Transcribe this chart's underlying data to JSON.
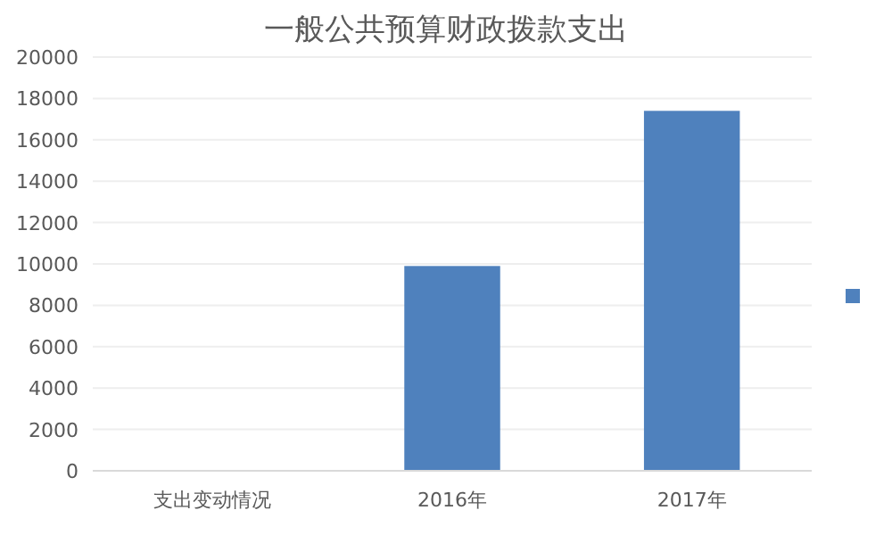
{
  "chart_data": {
    "type": "bar",
    "title": "一般公共预算财政拨款支出",
    "categories": [
      "支出变动情况",
      "2016年",
      "2017年"
    ],
    "series": [
      {
        "color": "#4f81bd",
        "values": [
          null,
          9900,
          17400
        ]
      }
    ],
    "ylim": [
      0,
      20000
    ],
    "yticks": [
      0,
      2000,
      4000,
      6000,
      8000,
      10000,
      12000,
      14000,
      16000,
      18000,
      20000
    ],
    "grid": "y"
  }
}
